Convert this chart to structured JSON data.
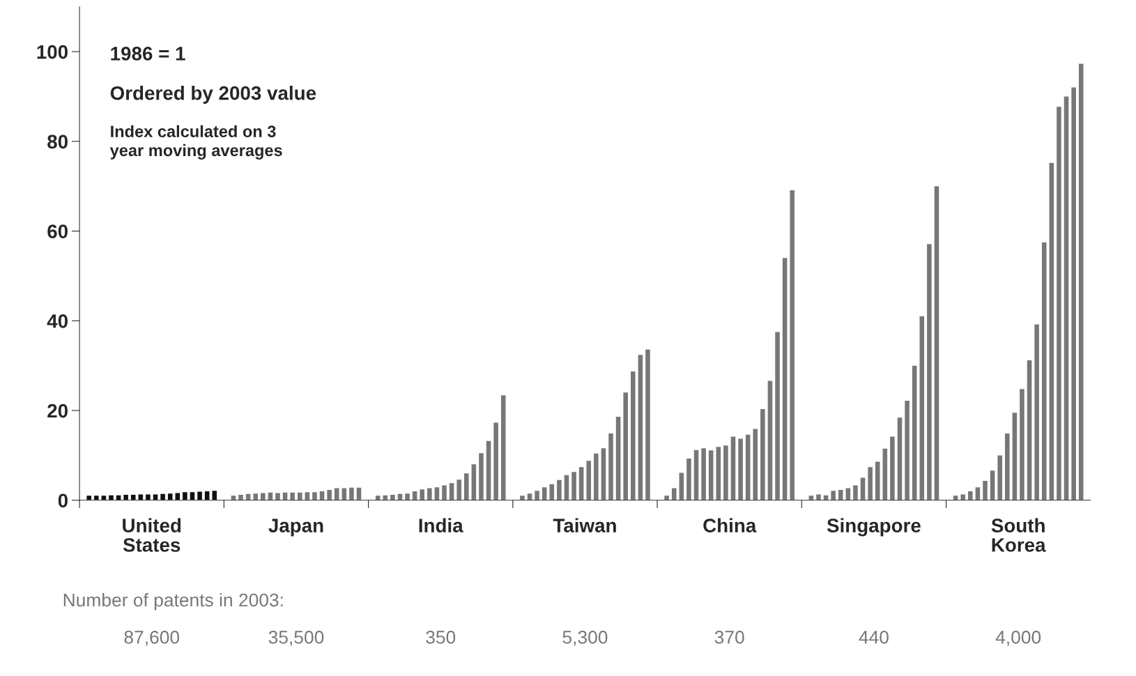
{
  "chart_data": {
    "type": "bar",
    "categories": [
      "United\nStates",
      "Japan",
      "India",
      "Taiwan",
      "China",
      "Singapore",
      "South\nKorea"
    ],
    "series": [
      {
        "colors": [
          "#111111",
          "#777777",
          "#777777",
          "#777777",
          "#777777",
          "#777777",
          "#777777"
        ],
        "values": [
          1,
          1,
          1,
          1,
          1,
          1,
          1
        ]
      },
      {
        "colors": [
          "#111111",
          "#777777",
          "#777777",
          "#777777",
          "#777777",
          "#777777",
          "#777777"
        ],
        "values": [
          1,
          1.2,
          1.1,
          1.5,
          2.7,
          1.3,
          1.3
        ]
      },
      {
        "colors": [
          "#111111",
          "#777777",
          "#777777",
          "#777777",
          "#777777",
          "#777777",
          "#777777"
        ],
        "values": [
          1,
          1.4,
          1.2,
          2.1,
          6.1,
          1.1,
          2
        ]
      },
      {
        "colors": [
          "#111111",
          "#777777",
          "#777777",
          "#777777",
          "#777777",
          "#777777",
          "#777777"
        ],
        "values": [
          1.1,
          1.5,
          1.4,
          2.9,
          9.3,
          2.1,
          2.9
        ]
      },
      {
        "colors": [
          "#111111",
          "#777777",
          "#777777",
          "#777777",
          "#777777",
          "#777777",
          "#777777"
        ],
        "values": [
          1.1,
          1.6,
          1.5,
          3.6,
          11.2,
          2.3,
          4.3
        ]
      },
      {
        "colors": [
          "#111111",
          "#777777",
          "#777777",
          "#777777",
          "#777777",
          "#777777",
          "#777777"
        ],
        "values": [
          1.2,
          1.7,
          2,
          4.5,
          11.6,
          2.7,
          6.6
        ]
      },
      {
        "colors": [
          "#111111",
          "#777777",
          "#777777",
          "#777777",
          "#777777",
          "#777777",
          "#777777"
        ],
        "values": [
          1.2,
          1.6,
          2.4,
          5.6,
          11.1,
          3.3,
          10
        ]
      },
      {
        "colors": [
          "#111111",
          "#777777",
          "#777777",
          "#777777",
          "#777777",
          "#777777",
          "#777777"
        ],
        "values": [
          1.3,
          1.7,
          2.7,
          6.3,
          11.9,
          5,
          14.9
        ]
      },
      {
        "colors": [
          "#111111",
          "#777777",
          "#777777",
          "#777777",
          "#777777",
          "#777777",
          "#777777"
        ],
        "values": [
          1.3,
          1.7,
          2.9,
          7.4,
          12.2,
          7.4,
          19.5
        ]
      },
      {
        "colors": [
          "#111111",
          "#777777",
          "#777777",
          "#777777",
          "#777777",
          "#777777",
          "#777777"
        ],
        "values": [
          1.3,
          1.7,
          3.3,
          8.8,
          14.2,
          8.6,
          24.8
        ]
      },
      {
        "colors": [
          "#111111",
          "#777777",
          "#777777",
          "#777777",
          "#777777",
          "#777777",
          "#777777"
        ],
        "values": [
          1.4,
          1.8,
          3.8,
          10.4,
          13.7,
          11.5,
          31.2
        ]
      },
      {
        "colors": [
          "#111111",
          "#777777",
          "#777777",
          "#777777",
          "#777777",
          "#777777",
          "#777777"
        ],
        "values": [
          1.5,
          1.8,
          4.6,
          11.6,
          14.6,
          14.2,
          39.2
        ]
      },
      {
        "colors": [
          "#111111",
          "#777777",
          "#777777",
          "#777777",
          "#777777",
          "#777777",
          "#777777"
        ],
        "values": [
          1.6,
          2,
          6,
          14.9,
          15.9,
          18.4,
          57.5
        ]
      },
      {
        "colors": [
          "#111111",
          "#777777",
          "#777777",
          "#777777",
          "#777777",
          "#777777",
          "#777777"
        ],
        "values": [
          1.8,
          2.3,
          8,
          18.6,
          20.3,
          22.2,
          75.2
        ]
      },
      {
        "colors": [
          "#111111",
          "#777777",
          "#777777",
          "#777777",
          "#777777",
          "#777777",
          "#777777"
        ],
        "values": [
          1.8,
          2.7,
          10.5,
          24,
          26.6,
          30,
          87.7
        ]
      },
      {
        "colors": [
          "#111111",
          "#777777",
          "#777777",
          "#777777",
          "#777777",
          "#777777",
          "#777777"
        ],
        "values": [
          1.9,
          2.7,
          13.2,
          28.7,
          37.5,
          41,
          90
        ]
      },
      {
        "colors": [
          "#111111",
          "#777777",
          "#777777",
          "#777777",
          "#777777",
          "#777777",
          "#777777"
        ],
        "values": [
          2,
          2.8,
          17.3,
          32.4,
          54,
          57.1,
          92
        ]
      },
      {
        "colors": [
          "#111111",
          "#777777",
          "#777777",
          "#777777",
          "#777777",
          "#777777",
          "#777777"
        ],
        "values": [
          2.1,
          2.8,
          23.4,
          33.6,
          69.1,
          70,
          97.3
        ]
      }
    ],
    "ylim": [
      0,
      110
    ],
    "yticks": [
      0,
      20,
      40,
      60,
      80,
      100
    ],
    "grid": false,
    "legend": false,
    "annotations": [
      "1986 = 1",
      "Ordered by 2003 value",
      "Index calculated on 3\nyear moving averages",
      "Number of patents in 2003:",
      "87,600",
      "35,500",
      "350",
      "5,300",
      "370",
      "440",
      "4,000"
    ]
  }
}
